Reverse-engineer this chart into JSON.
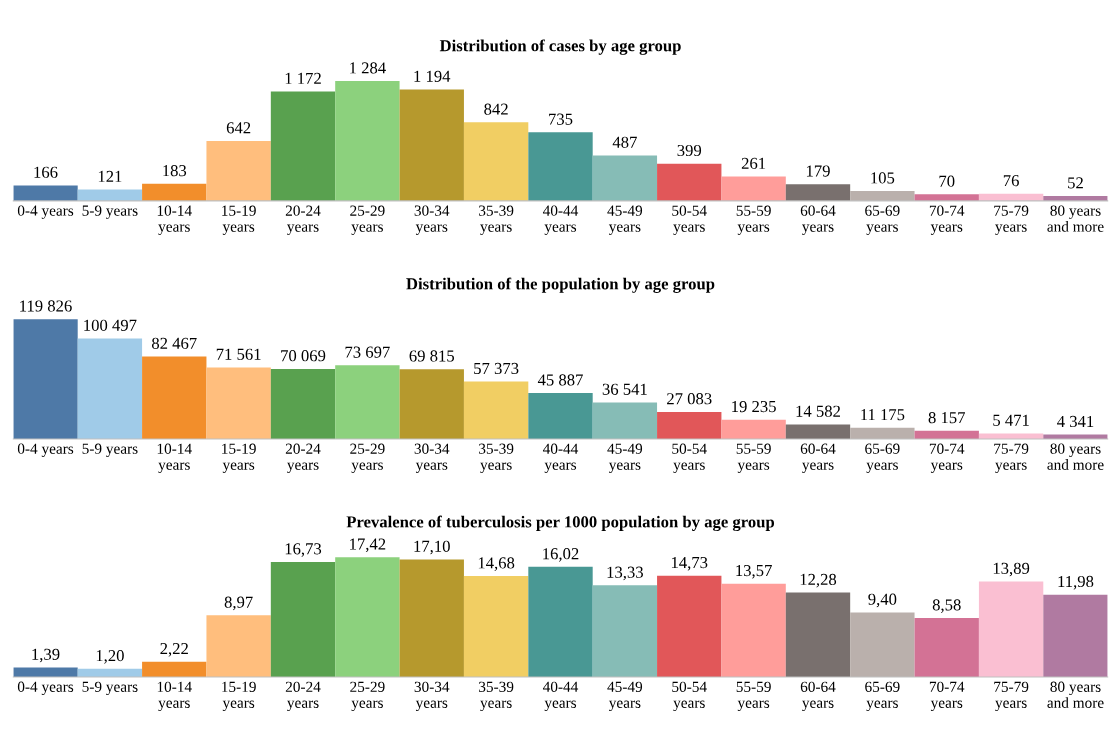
{
  "chart_data": [
    {
      "type": "bar",
      "title": "Distribution of cases by age group",
      "categories": [
        "0-4 years",
        "5-9 years",
        "10-14\nyears",
        "15-19\nyears",
        "20-24\nyears",
        "25-29\nyears",
        "30-34\nyears",
        "35-39\nyears",
        "40-44\nyears",
        "45-49\nyears",
        "50-54\nyears",
        "55-59\nyears",
        "60-64\nyears",
        "65-69\nyears",
        "70-74\nyears",
        "75-79\nyears",
        "80 years\nand more"
      ],
      "values": [
        166,
        121,
        183,
        642,
        1172,
        1284,
        1194,
        842,
        735,
        487,
        399,
        261,
        179,
        105,
        70,
        76,
        52
      ],
      "value_labels": [
        "166",
        "121",
        "183",
        "642",
        "1 172",
        "1 284",
        "1 194",
        "842",
        "735",
        "487",
        "399",
        "261",
        "179",
        "105",
        "70",
        "76",
        "52"
      ],
      "colors": [
        "#4e79a7",
        "#a0cbe8",
        "#f28e2b",
        "#ffbe7d",
        "#59a14f",
        "#8cd17d",
        "#b6992d",
        "#f1ce63",
        "#499894",
        "#86bcb6",
        "#e15759",
        "#ff9d9a",
        "#79706e",
        "#bab0ac",
        "#d37295",
        "#fabfd2",
        "#b07aa1"
      ],
      "grid": false,
      "tick_labels": "x"
    },
    {
      "type": "bar",
      "title": "Distribution of the population by age group",
      "categories": [
        "0-4 years",
        "5-9 years",
        "10-14\nyears",
        "15-19\nyears",
        "20-24\nyears",
        "25-29\nyears",
        "30-34\nyears",
        "35-39\nyears",
        "40-44\nyears",
        "45-49\nyears",
        "50-54\nyears",
        "55-59\nyears",
        "60-64\nyears",
        "65-69\nyears",
        "70-74\nyears",
        "75-79\nyears",
        "80 years\nand more"
      ],
      "values": [
        119826,
        100497,
        82467,
        71561,
        70069,
        73697,
        69815,
        57373,
        45887,
        36541,
        27083,
        19235,
        14582,
        11175,
        8157,
        5471,
        4341
      ],
      "value_labels": [
        "119 826",
        "100 497",
        "82 467",
        "71 561",
        "70 069",
        "73 697",
        "69 815",
        "57 373",
        "45 887",
        "36 541",
        "27 083",
        "19 235",
        "14 582",
        "11 175",
        "8 157",
        "5 471",
        "4 341"
      ],
      "colors": [
        "#4e79a7",
        "#a0cbe8",
        "#f28e2b",
        "#ffbe7d",
        "#59a14f",
        "#8cd17d",
        "#b6992d",
        "#f1ce63",
        "#499894",
        "#86bcb6",
        "#e15759",
        "#ff9d9a",
        "#79706e",
        "#bab0ac",
        "#d37295",
        "#fabfd2",
        "#b07aa1"
      ],
      "grid": false,
      "tick_labels": "x"
    },
    {
      "type": "bar",
      "title": "Prevalence of tuberculosis per 1000 population by age group",
      "categories": [
        "0-4 years",
        "5-9 years",
        "10-14\nyears",
        "15-19\nyears",
        "20-24\nyears",
        "25-29\nyears",
        "30-34\nyears",
        "35-39\nyears",
        "40-44\nyears",
        "45-49\nyears",
        "50-54\nyears",
        "55-59\nyears",
        "60-64\nyears",
        "65-69\nyears",
        "70-74\nyears",
        "75-79\nyears",
        "80 years\nand more"
      ],
      "values": [
        1.39,
        1.2,
        2.22,
        8.97,
        16.73,
        17.42,
        17.1,
        14.68,
        16.02,
        13.33,
        14.73,
        13.57,
        12.28,
        9.4,
        8.58,
        13.89,
        11.98
      ],
      "value_labels": [
        "1,39",
        "1,20",
        "2,22",
        "8,97",
        "16,73",
        "17,42",
        "17,10",
        "14,68",
        "16,02",
        "13,33",
        "14,73",
        "13,57",
        "12,28",
        "9,40",
        "8,58",
        "13,89",
        "11,98"
      ],
      "colors": [
        "#4e79a7",
        "#a0cbe8",
        "#f28e2b",
        "#ffbe7d",
        "#59a14f",
        "#8cd17d",
        "#b6992d",
        "#f1ce63",
        "#499894",
        "#86bcb6",
        "#e15759",
        "#ff9d9a",
        "#79706e",
        "#bab0ac",
        "#d37295",
        "#fabfd2",
        "#b07aa1"
      ],
      "grid": false,
      "tick_labels": "x"
    }
  ]
}
